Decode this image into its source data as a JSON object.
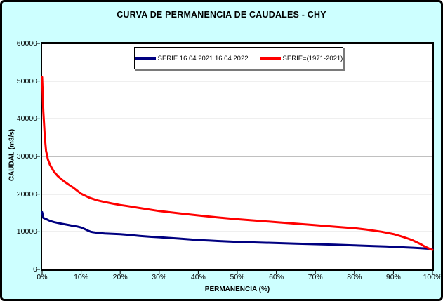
{
  "window": {
    "background_color": "#CDFFFF",
    "plot_background_color": "#FFFFFF",
    "grid_color": "#808080",
    "border_color": "#000000"
  },
  "chart_data": {
    "type": "line",
    "title": "CURVA DE PERMANENCIA DE CAUDALES - CHY",
    "xlabel": "PERMANENCIA (%)",
    "ylabel": "CAUDAL (m3/s)",
    "xlim": [
      0,
      100
    ],
    "ylim": [
      0,
      60000
    ],
    "grid": "horizontal-only",
    "legend_position": "top-center-inside",
    "x_tick_values": [
      0,
      10,
      20,
      30,
      40,
      50,
      60,
      70,
      80,
      90,
      100
    ],
    "x_tick_labels": [
      "0%",
      "10%",
      "20%",
      "30%",
      "40%",
      "50%",
      "60%",
      "70%",
      "80%",
      "90%",
      "100%"
    ],
    "y_tick_values": [
      0,
      10000,
      20000,
      30000,
      40000,
      50000,
      60000
    ],
    "y_tick_labels": [
      "0",
      "10000",
      "20000",
      "30000",
      "40000",
      "50000",
      "60000"
    ],
    "y_grid_values": [
      10000,
      20000,
      30000,
      40000,
      50000
    ],
    "grid_color": "#808080",
    "series": [
      {
        "name": "SERIE 16.04.2021 16.04.2022",
        "color": "#000080",
        "points": [
          [
            0,
            15200
          ],
          [
            0.3,
            13700
          ],
          [
            1,
            13400
          ],
          [
            2,
            12900
          ],
          [
            3,
            12600
          ],
          [
            4,
            12350
          ],
          [
            5,
            12150
          ],
          [
            6,
            11950
          ],
          [
            7,
            11750
          ],
          [
            8,
            11550
          ],
          [
            9,
            11400
          ],
          [
            10,
            11150
          ],
          [
            11,
            10700
          ],
          [
            12,
            10200
          ],
          [
            12.5,
            10000
          ],
          [
            13,
            9900
          ],
          [
            14,
            9750
          ],
          [
            15,
            9650
          ],
          [
            16,
            9550
          ],
          [
            18,
            9450
          ],
          [
            20,
            9360
          ],
          [
            22,
            9200
          ],
          [
            25,
            8900
          ],
          [
            28,
            8670
          ],
          [
            30,
            8560
          ],
          [
            33,
            8350
          ],
          [
            35,
            8200
          ],
          [
            38,
            7950
          ],
          [
            40,
            7800
          ],
          [
            43,
            7650
          ],
          [
            45,
            7550
          ],
          [
            48,
            7400
          ],
          [
            50,
            7300
          ],
          [
            55,
            7150
          ],
          [
            60,
            7000
          ],
          [
            65,
            6850
          ],
          [
            70,
            6700
          ],
          [
            75,
            6550
          ],
          [
            80,
            6400
          ],
          [
            85,
            6200
          ],
          [
            88,
            6100
          ],
          [
            90,
            6000
          ],
          [
            93,
            5850
          ],
          [
            95,
            5750
          ],
          [
            97,
            5650
          ],
          [
            99,
            5500
          ],
          [
            100,
            5350
          ]
        ]
      },
      {
        "name": "SERIE=(1971-2021)",
        "color": "#FF0000",
        "points": [
          [
            0,
            51000
          ],
          [
            0.3,
            42000
          ],
          [
            0.7,
            35000
          ],
          [
            1,
            31500
          ],
          [
            1.5,
            29200
          ],
          [
            2,
            27800
          ],
          [
            3,
            26000
          ],
          [
            4,
            24800
          ],
          [
            5,
            23900
          ],
          [
            6,
            23100
          ],
          [
            7,
            22400
          ],
          [
            8,
            21700
          ],
          [
            9,
            20900
          ],
          [
            10,
            20100
          ],
          [
            11,
            19600
          ],
          [
            12,
            19100
          ],
          [
            14,
            18400
          ],
          [
            16,
            17900
          ],
          [
            18,
            17500
          ],
          [
            20,
            17100
          ],
          [
            22,
            16800
          ],
          [
            25,
            16300
          ],
          [
            30,
            15500
          ],
          [
            35,
            14900
          ],
          [
            40,
            14350
          ],
          [
            45,
            13800
          ],
          [
            50,
            13350
          ],
          [
            55,
            12950
          ],
          [
            60,
            12550
          ],
          [
            65,
            12150
          ],
          [
            70,
            11750
          ],
          [
            75,
            11350
          ],
          [
            80,
            10950
          ],
          [
            83,
            10600
          ],
          [
            85,
            10300
          ],
          [
            87,
            10000
          ],
          [
            89,
            9600
          ],
          [
            90,
            9400
          ],
          [
            92,
            8800
          ],
          [
            94,
            8100
          ],
          [
            95,
            7700
          ],
          [
            96,
            7200
          ],
          [
            97,
            6700
          ],
          [
            98,
            6100
          ],
          [
            99,
            5600
          ],
          [
            100,
            5200
          ]
        ]
      }
    ]
  }
}
